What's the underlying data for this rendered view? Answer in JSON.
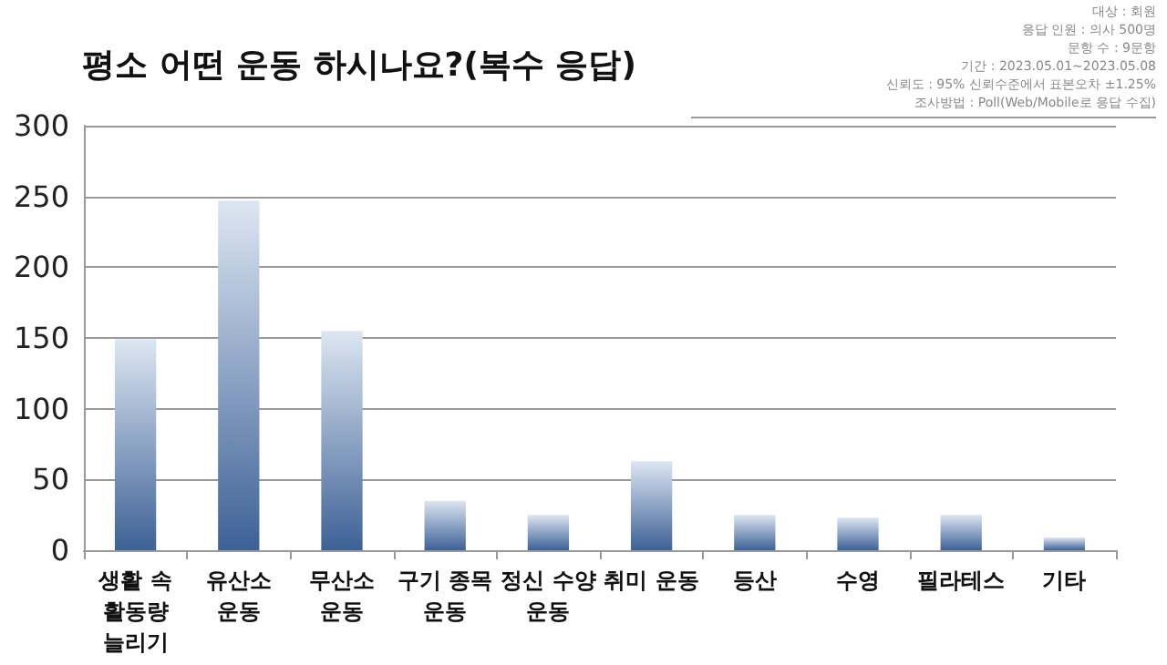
{
  "chart_data": {
    "type": "bar",
    "title": "평소 어떤 운동 하시나요?(복수 응답)",
    "annotations": [
      "대상 : 회원",
      "응답 인원 : 의사 500명",
      "문항 수 : 9문항",
      "기간 : 2023.05.01~2023.05.08",
      "신뢰도 : 95% 신뢰수준에서 표본오차 ±1.25%",
      "조사방법 : Poll(Web/Mobile로 응답 수집)"
    ],
    "categories": [
      "생활 속\n활동량\n늘리기",
      "유산소\n운동",
      "무산소\n운동",
      "구기 종목\n운동",
      "정신 수양\n운동",
      "취미 운동",
      "등산",
      "수영",
      "필라테스",
      "기타"
    ],
    "values": [
      149,
      247,
      155,
      35,
      25,
      63,
      25,
      23,
      25,
      9
    ],
    "color": "#3d6196",
    "ylim": [
      0,
      300
    ],
    "yticks": [
      0,
      50,
      100,
      150,
      200,
      250,
      300
    ],
    "grid": "y"
  }
}
